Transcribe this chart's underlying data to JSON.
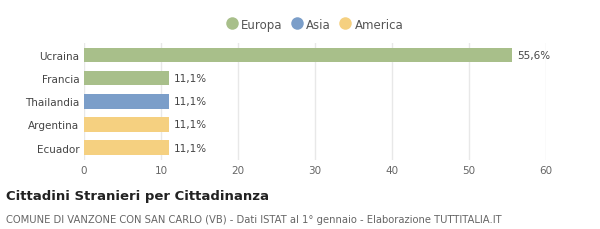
{
  "categories": [
    "Ucraina",
    "Francia",
    "Thailandia",
    "Argentina",
    "Ecuador"
  ],
  "values": [
    55.6,
    11.1,
    11.1,
    11.1,
    11.1
  ],
  "labels": [
    "55,6%",
    "11,1%",
    "11,1%",
    "11,1%",
    "11,1%"
  ],
  "colors": [
    "#a8bf8a",
    "#a8bf8a",
    "#7b9ec9",
    "#f5d080",
    "#f5d080"
  ],
  "legend_items": [
    {
      "label": "Europa",
      "color": "#a8bf8a"
    },
    {
      "label": "Asia",
      "color": "#7b9ec9"
    },
    {
      "label": "America",
      "color": "#f5d080"
    }
  ],
  "xlim": [
    0,
    60
  ],
  "xticks": [
    0,
    10,
    20,
    30,
    40,
    50,
    60
  ],
  "title": "Cittadini Stranieri per Cittadinanza",
  "subtitle": "COMUNE DI VANZONE CON SAN CARLO (VB) - Dati ISTAT al 1° gennaio - Elaborazione TUTTITALIA.IT",
  "background_color": "#ffffff",
  "grid_color": "#e8e8e8",
  "bar_height": 0.62,
  "title_fontsize": 9.5,
  "subtitle_fontsize": 7.2,
  "label_fontsize": 7.5,
  "tick_fontsize": 7.5,
  "legend_fontsize": 8.5
}
